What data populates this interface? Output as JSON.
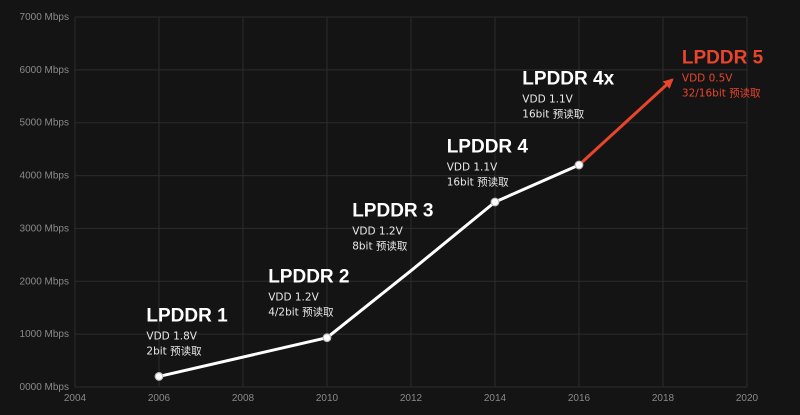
{
  "chart_data": {
    "type": "line",
    "xlim": [
      2004,
      2020
    ],
    "ylim": [
      0,
      7000
    ],
    "x_ticks": [
      2004,
      2006,
      2008,
      2010,
      2012,
      2014,
      2016,
      2018,
      2020
    ],
    "y_ticks": [
      {
        "value": 0,
        "label": "0000 Mbps"
      },
      {
        "value": 1000,
        "label": "1000 Mbps"
      },
      {
        "value": 2000,
        "label": "2000 Mbps"
      },
      {
        "value": 3000,
        "label": "3000 Mbps"
      },
      {
        "value": 4000,
        "label": "4000 Mbps"
      },
      {
        "value": 5000,
        "label": "5000 Mbps"
      },
      {
        "value": 6000,
        "label": "6000 Mbps"
      },
      {
        "value": 7000,
        "label": "7000 Mbps"
      }
    ],
    "grid": true,
    "series": [
      {
        "color": "#ffffff",
        "points": [
          {
            "x": 2006,
            "y": 200
          },
          {
            "x": 2010,
            "y": 933
          },
          {
            "x": 2012,
            "y": 2200
          },
          {
            "x": 2014,
            "y": 3500
          },
          {
            "x": 2016,
            "y": 4200
          }
        ],
        "markers_at": [
          0,
          1,
          3,
          4
        ]
      },
      {
        "color": "#e8452c",
        "arrow": true,
        "points": [
          {
            "x": 2016,
            "y": 4200
          },
          {
            "x": 2018.2,
            "y": 5800
          }
        ]
      }
    ],
    "annotations": [
      {
        "title": "LPDDR 1",
        "lines": [
          "VDD 1.8V",
          "2bit 预读取"
        ],
        "x": 2005.7,
        "y": 1240,
        "color": "#ffffff",
        "line_color": "#e8e8e8"
      },
      {
        "title": "LPDDR 2",
        "lines": [
          "VDD 1.2V",
          "4/2bit 预读取"
        ],
        "x": 2008.6,
        "y": 1980,
        "color": "#ffffff",
        "line_color": "#e8e8e8"
      },
      {
        "title": "LPDDR 3",
        "lines": [
          "VDD 1.2V",
          "8bit 预读取"
        ],
        "x": 2010.6,
        "y": 3230,
        "color": "#ffffff",
        "line_color": "#e8e8e8"
      },
      {
        "title": "LPDDR 4",
        "lines": [
          "VDD 1.1V",
          "16bit 预读取"
        ],
        "x": 2012.85,
        "y": 4440,
        "color": "#ffffff",
        "line_color": "#e8e8e8"
      },
      {
        "title": "LPDDR 4x",
        "lines": [
          "VDD 1.1V",
          "16bit 预读取"
        ],
        "x": 2014.65,
        "y": 5720,
        "color": "#ffffff",
        "line_color": "#e8e8e8"
      },
      {
        "title": "LPDDR 5",
        "lines": [
          "VDD 0.5V",
          "32/16bit 预读取"
        ],
        "x": 2018.45,
        "y": 6120,
        "color": "#e8452c",
        "line_color": "#e8452c"
      }
    ]
  }
}
